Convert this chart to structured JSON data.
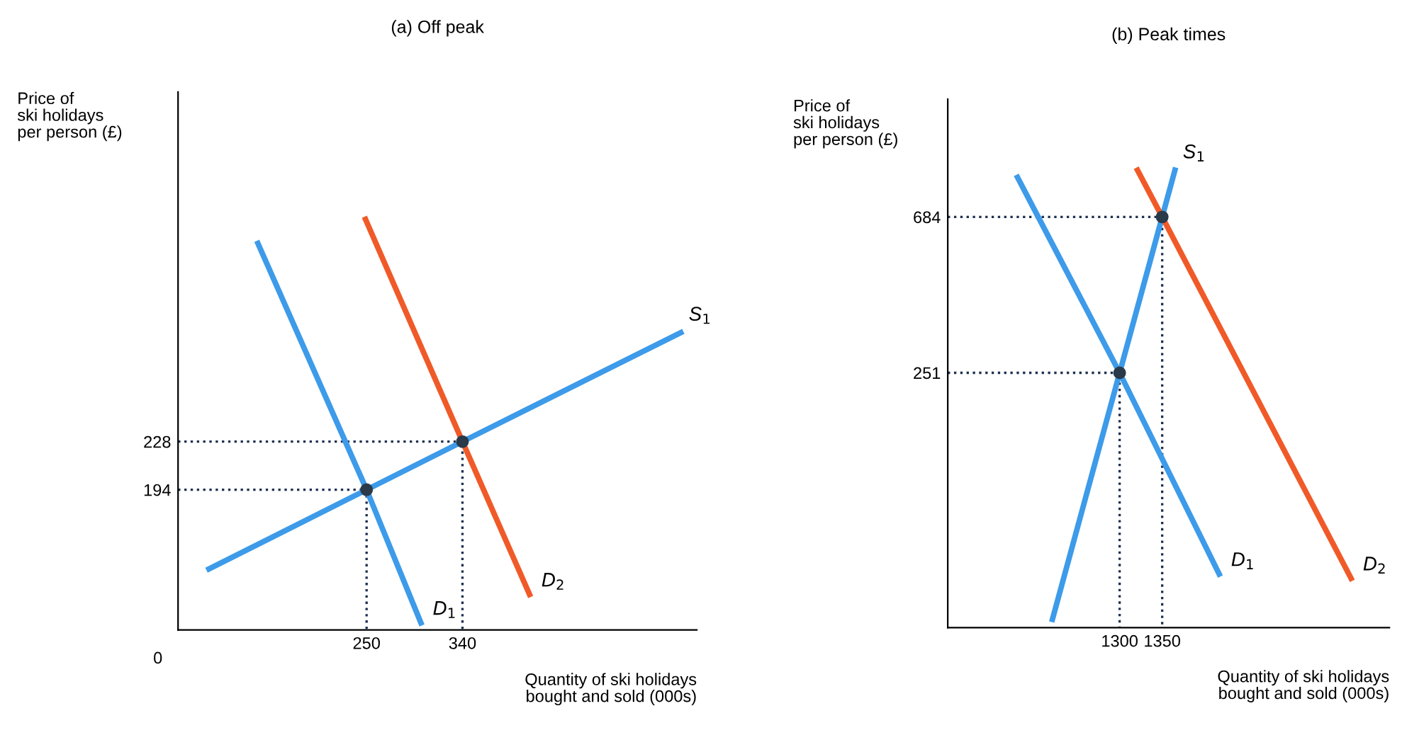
{
  "chart_data": [
    {
      "type": "line",
      "title": "(a) Off peak",
      "xlabel": "Quantity of ski holidays\nbought and sold (000s)",
      "ylabel": "Price of\nski holidays\nper person (£)",
      "xlim": [
        73,
        560
      ],
      "ylim": [
        95,
        475
      ],
      "xticks": [
        250,
        340
      ],
      "yticks": [
        194,
        228
      ],
      "grid": false,
      "legend": false,
      "annotations": [
        "0"
      ],
      "series": [
        {
          "line_style": "dotted",
          "color": "#1f3050",
          "x": [
            73,
            250,
            250
          ],
          "values": [
            194,
            194,
            95
          ]
        },
        {
          "line_style": "dotted",
          "color": "#1f3050",
          "x": [
            73,
            340,
            340
          ],
          "values": [
            228,
            228,
            95
          ]
        },
        {
          "name": "S$_{1}$",
          "color": "#3d9be9",
          "x": [
            102,
            250,
            340,
            545
          ],
          "values": [
            138,
            194,
            228,
            305
          ]
        },
        {
          "name": "D$_{1}$",
          "color": "#3d9be9",
          "x": [
            148,
            250,
            301
          ],
          "values": [
            368,
            194,
            100
          ]
        },
        {
          "name": "D$_{2}$",
          "color": "#f05a28",
          "x": [
            249,
            340,
            403
          ],
          "values": [
            385,
            228,
            120
          ]
        },
        {
          "type": "scatter",
          "marker": "circle",
          "color": "#2b3a4a",
          "x": [
            250,
            340
          ],
          "values": [
            194,
            228
          ]
        }
      ]
    },
    {
      "type": "line",
      "title": "(b) Peak times",
      "xlabel": "Quantity of ski holidays\nbought and sold (000s)",
      "ylabel": "Price of\nski holidays\nper person (£)",
      "xlim": [
        1098,
        1617
      ],
      "ylim": [
        -457,
        1011
      ],
      "xticks": [
        1300,
        1350
      ],
      "yticks": [
        251,
        684
      ],
      "grid": false,
      "legend": false,
      "series": [
        {
          "line_style": "dotted",
          "color": "#1f3050",
          "x": [
            1098,
            1300,
            1300
          ],
          "values": [
            251,
            251,
            -457
          ]
        },
        {
          "line_style": "dotted",
          "color": "#1f3050",
          "x": [
            1098,
            1350,
            1350
          ],
          "values": [
            684,
            684,
            -457
          ]
        },
        {
          "name": "S$_{1}$",
          "color": "#3d9be9",
          "x": [
            1221,
            1300,
            1350,
            1365
          ],
          "values": [
            -434,
            251,
            684,
            814
          ]
        },
        {
          "name": "D$_{1}$",
          "color": "#3d9be9",
          "x": [
            1180,
            1300,
            1417
          ],
          "values": [
            794,
            251,
            -308
          ]
        },
        {
          "name": "D$_{2}$",
          "color": "#f05a28",
          "x": [
            1321,
            1350,
            1572
          ],
          "values": [
            814,
            684,
            -320
          ]
        },
        {
          "type": "scatter",
          "marker": "circle",
          "color": "#2b3a4a",
          "x": [
            1300,
            1350
          ],
          "values": [
            251,
            684
          ]
        }
      ]
    }
  ]
}
